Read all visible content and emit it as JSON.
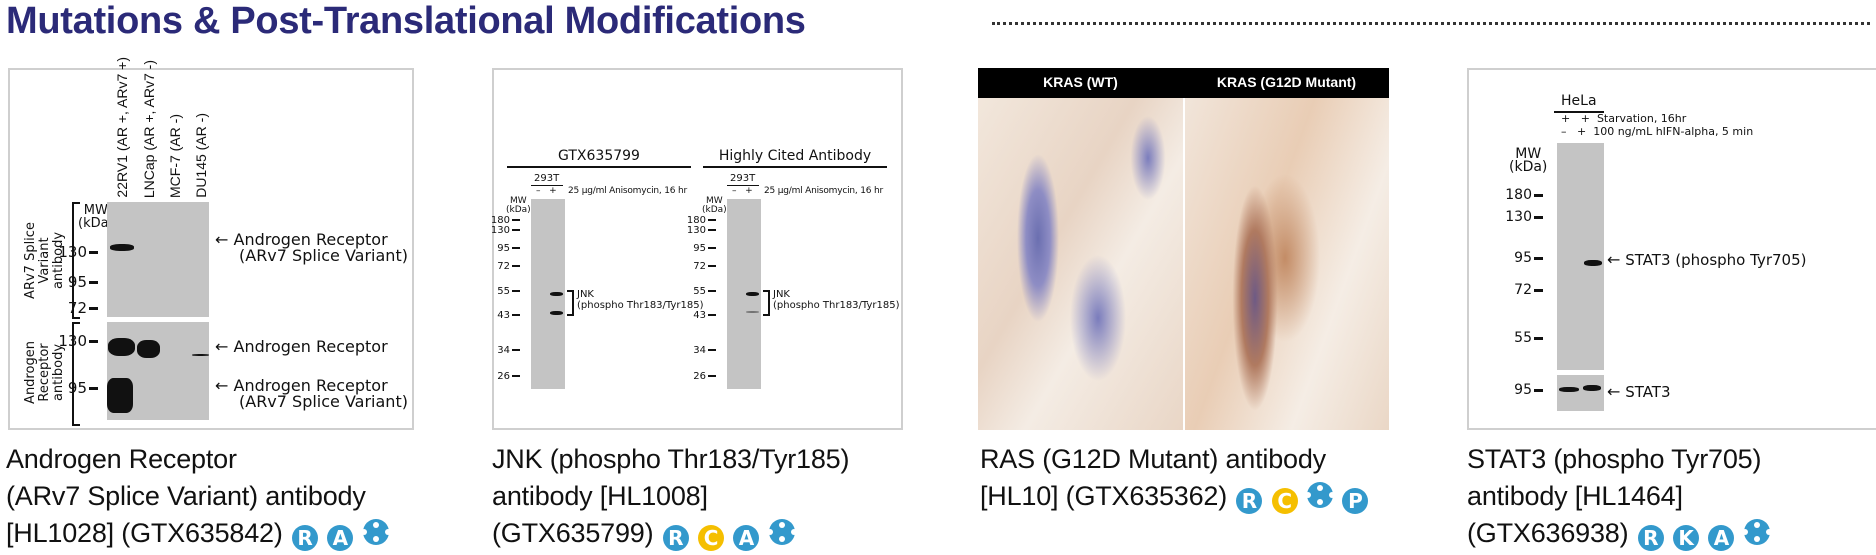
{
  "header": {
    "title": "Mutations & Post-Translational Modifications"
  },
  "colors": {
    "title": "#2b2a78",
    "badge_blue": "#3399cc",
    "badge_yellow": "#f5bf00"
  },
  "products": [
    {
      "figure": {
        "lanes": [
          "22RV1 (AR +, ARv7 +)",
          "LNCap (AR +, ARv7 -)",
          "MCF-7 (AR -)",
          "DU145 (AR -)"
        ],
        "mw_label": [
          "MW",
          "(kDa)"
        ],
        "upper_antibody": "ARv7 Splice Variant antibody",
        "lower_antibody": "Androgen Receptor antibody",
        "upper_markers": [
          "130",
          "95",
          "72"
        ],
        "lower_markers": [
          "130",
          "95"
        ],
        "label_ar_v7": [
          "Androgen Receptor",
          "(ARv7 Splice Variant)"
        ],
        "label_ar": "Androgen Receptor",
        "label_ar_v7_lower": [
          "Androgen Receptor",
          "(ARv7 Splice Variant)"
        ]
      },
      "caption": [
        "Androgen Receptor",
        "(ARv7 Splice Variant) antibody",
        "[HL1028] (GTX635842)"
      ],
      "badges": [
        {
          "letter": "R",
          "color": "blue",
          "icon": "reactivity-icon"
        },
        {
          "letter": "A",
          "color": "blue",
          "icon": "application-icon"
        },
        {
          "letter": "",
          "color": "blue",
          "icon": "recombinant-icon"
        }
      ]
    },
    {
      "figure": {
        "blots": [
          {
            "title": "GTX635799",
            "cell": "293T",
            "treat": [
              "–",
              "+"
            ],
            "treatment": "25 µg/ml Anisomycin, 16 hr"
          },
          {
            "title": "Highly Cited Antibody",
            "cell": "293T",
            "treat": [
              "–",
              "+"
            ],
            "treatment": "25 µg/ml Anisomycin, 16 hr"
          }
        ],
        "mw_label": [
          "MW",
          "(kDa)"
        ],
        "markers": [
          "180",
          "130",
          "95",
          "72",
          "55",
          "43",
          "34",
          "26"
        ],
        "band_label": [
          "JNK",
          "(phospho Thr183/Tyr185)"
        ]
      },
      "caption": [
        "JNK (phospho Thr183/Tyr185)",
        "antibody [HL1008]",
        "(GTX635799)"
      ],
      "badges": [
        {
          "letter": "R",
          "color": "blue",
          "icon": "reactivity-icon"
        },
        {
          "letter": "C",
          "color": "yellow",
          "icon": "cited-icon"
        },
        {
          "letter": "A",
          "color": "blue",
          "icon": "application-icon"
        },
        {
          "letter": "",
          "color": "blue",
          "icon": "recombinant-icon"
        }
      ]
    },
    {
      "figure": {
        "headers": [
          "KRAS (WT)",
          "KRAS (G12D Mutant)"
        ]
      },
      "caption": [
        "RAS (G12D Mutant) antibody",
        "[HL10] (GTX635362)"
      ],
      "badges": [
        {
          "letter": "R",
          "color": "blue",
          "icon": "reactivity-icon"
        },
        {
          "letter": "C",
          "color": "yellow",
          "icon": "cited-icon"
        },
        {
          "letter": "",
          "color": "blue",
          "icon": "recombinant-icon"
        },
        {
          "letter": "P",
          "color": "blue",
          "icon": "protocol-icon"
        }
      ]
    },
    {
      "figure": {
        "cell": "HeLa",
        "rows": [
          {
            "signs": [
              "+",
              "+"
            ],
            "label": "Starvation, 16hr"
          },
          {
            "signs": [
              "–",
              "+"
            ],
            "label": "100 ng/mL hIFN-alpha, 5 min"
          }
        ],
        "mw_label": [
          "MW",
          "(kDa)"
        ],
        "markers": [
          "180",
          "130",
          "95",
          "72",
          "55"
        ],
        "lower_marker": "95",
        "label_upper": "STAT3 (phospho Tyr705)",
        "label_lower": "STAT3"
      },
      "caption": [
        "STAT3 (phospho Tyr705)",
        "antibody [HL1464]",
        "(GTX636938)"
      ],
      "badges": [
        {
          "letter": "R",
          "color": "blue",
          "icon": "reactivity-icon"
        },
        {
          "letter": "K",
          "color": "blue",
          "icon": "knockout-icon"
        },
        {
          "letter": "A",
          "color": "blue",
          "icon": "application-icon"
        },
        {
          "letter": "",
          "color": "blue",
          "icon": "recombinant-icon"
        }
      ]
    }
  ]
}
